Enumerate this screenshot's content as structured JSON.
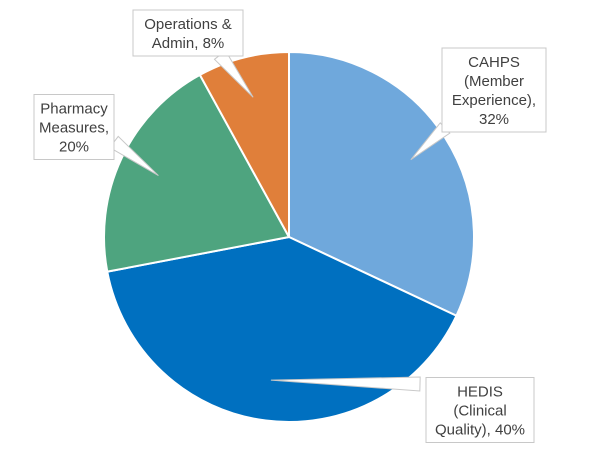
{
  "chart_data": {
    "type": "pie",
    "title": "",
    "start_angle_deg": 0,
    "direction": "clockwise",
    "slices": [
      {
        "name": "CAHPS (Member Experience)",
        "value": 32,
        "label_lines": [
          "CAHPS",
          "(Member",
          "Experience),",
          "32%"
        ],
        "color": "#6fa8dc"
      },
      {
        "name": "HEDIS (Clinical Quality)",
        "value": 40,
        "label_lines": [
          "HEDIS",
          "(Clinical",
          "Quality), 40%"
        ],
        "color": "#0070c0"
      },
      {
        "name": "Pharmacy Measures",
        "value": 20,
        "label_lines": [
          "Pharmacy",
          "Measures,",
          "20%"
        ],
        "color": "#4ea47f"
      },
      {
        "name": "Operations & Admin",
        "value": 8,
        "label_lines": [
          "Operations &",
          "Admin, 8%"
        ],
        "color": "#e07f3a"
      }
    ]
  }
}
